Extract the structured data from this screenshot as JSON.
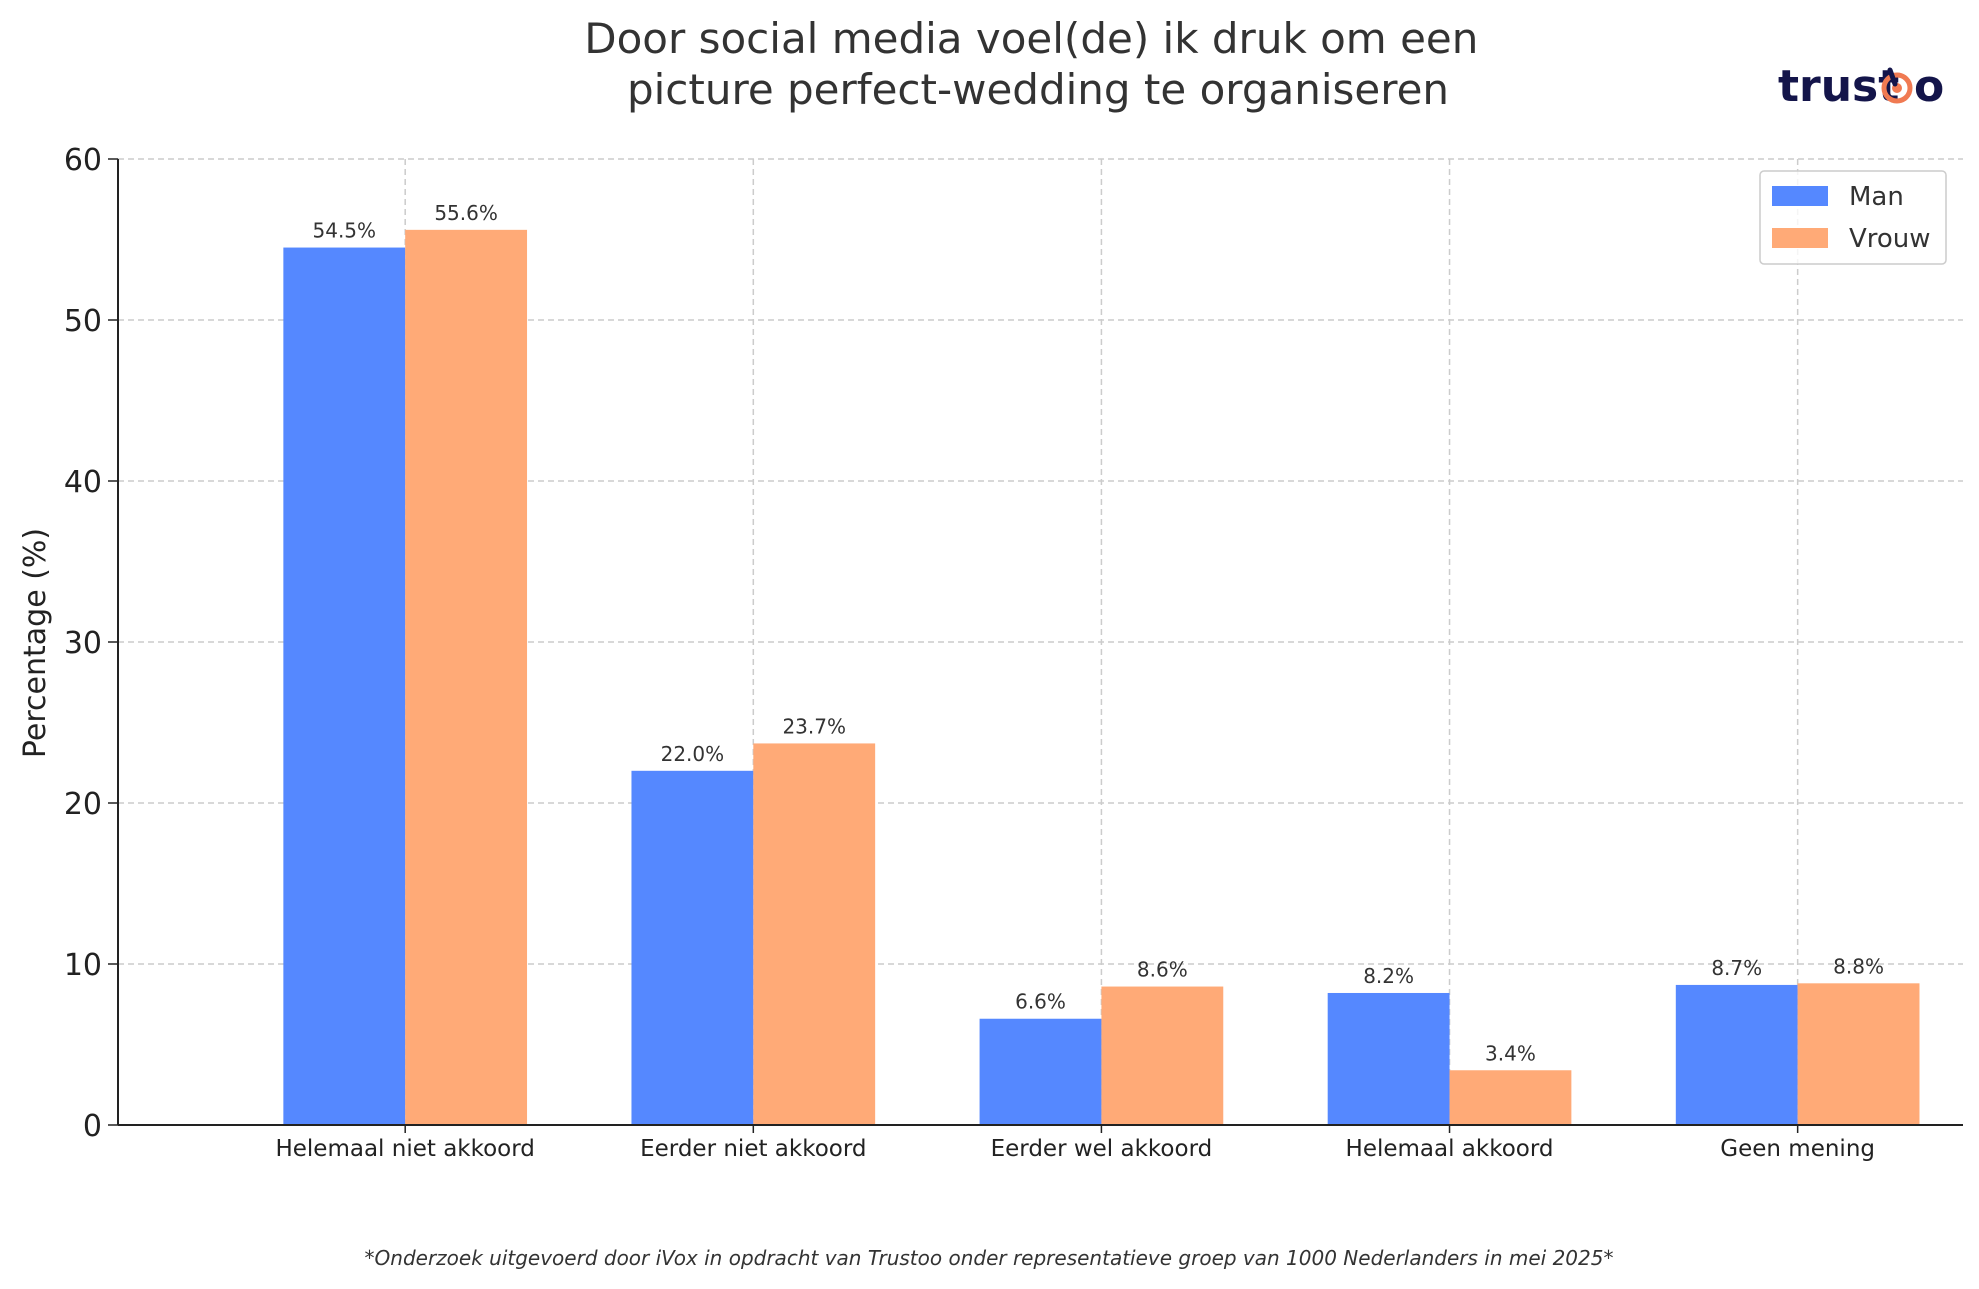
{
  "chart_data": {
    "type": "bar",
    "title": "Door social media voel(de) ik druk om een\npicture perfect-wedding te organiseren",
    "xlabel": "",
    "ylabel": "Percentage (%)",
    "ylim": [
      0,
      60
    ],
    "yticks": [
      0,
      10,
      20,
      30,
      40,
      50,
      60
    ],
    "grid": true,
    "legend_position": "top-right",
    "categories": [
      "Helemaal niet akkoord",
      "Eerder niet akkoord",
      "Eerder wel akkoord",
      "Helemaal akkoord",
      "Geen mening"
    ],
    "series": [
      {
        "name": "Man",
        "color": "#5588ff",
        "values": [
          54.5,
          22.0,
          6.6,
          8.2,
          8.7
        ],
        "labels": [
          "54.5%",
          "22.0%",
          "6.6%",
          "8.2%",
          "8.7%"
        ]
      },
      {
        "name": "Vrouw",
        "color": "#ffaa77",
        "values": [
          55.6,
          23.7,
          8.6,
          3.4,
          8.8
        ],
        "labels": [
          "55.6%",
          "23.7%",
          "8.6%",
          "3.4%",
          "8.8%"
        ]
      }
    ]
  },
  "logo": {
    "text": "trustoo",
    "accent_color": "#f07a52",
    "text_color": "#14154a"
  },
  "footnote": "*Onderzoek uitgevoerd door iVox in opdracht van Trustoo onder representatieve groep van 1000 Nederlanders in mei 2025*"
}
